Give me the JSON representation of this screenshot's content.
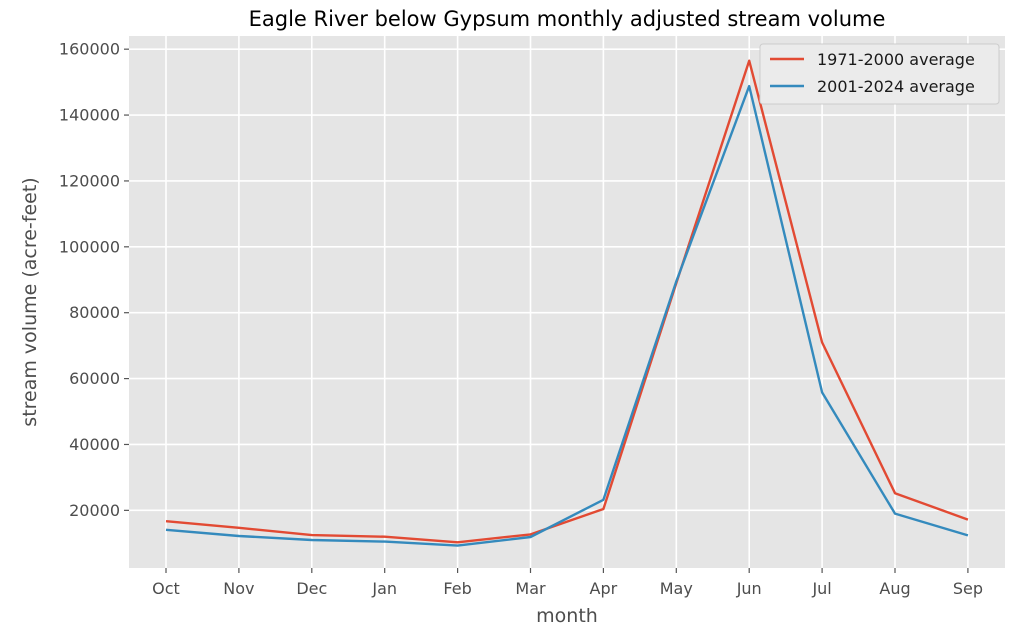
{
  "chart_data": {
    "type": "line",
    "title": "Eagle River below Gypsum monthly adjusted stream volume",
    "xlabel": "month",
    "ylabel": "stream volume (acre-feet)",
    "categories": [
      "Oct",
      "Nov",
      "Dec",
      "Jan",
      "Feb",
      "Mar",
      "Apr",
      "May",
      "Jun",
      "Jul",
      "Aug",
      "Sep"
    ],
    "yticks": [
      20000,
      40000,
      60000,
      80000,
      100000,
      120000,
      140000,
      160000
    ],
    "ytick_labels": [
      "20000",
      "40000",
      "60000",
      "80000",
      "100000",
      "120000",
      "140000",
      "160000"
    ],
    "ylim": [
      2500,
      164000
    ],
    "grid": true,
    "legend_position": "top-right",
    "background": "#e5e5e5",
    "series": [
      {
        "name": "1971-2000 average",
        "color": "#e24a33",
        "values": [
          16700,
          14700,
          12500,
          12000,
          10300,
          12700,
          20400,
          89000,
          156500,
          71000,
          25200,
          17200
        ]
      },
      {
        "name": "2001-2024 average",
        "color": "#348abd",
        "values": [
          14100,
          12200,
          11000,
          10500,
          9300,
          11900,
          23200,
          89500,
          148800,
          55800,
          19000,
          12400
        ]
      }
    ]
  }
}
